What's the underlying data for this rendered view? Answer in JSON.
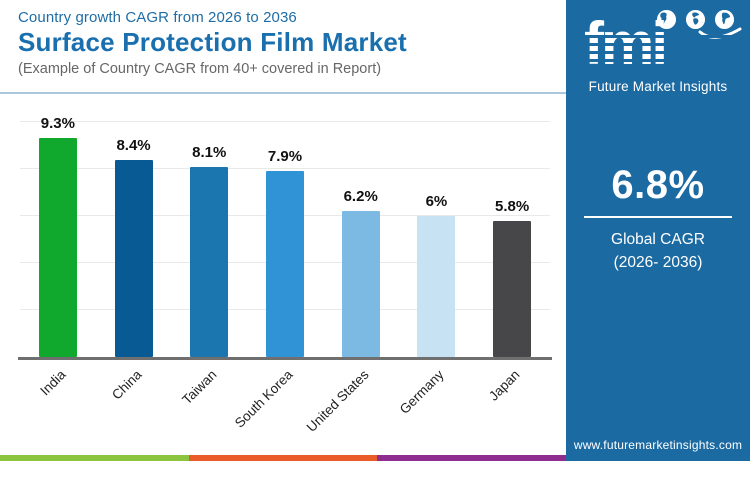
{
  "header": {
    "kicker": "Country growth CAGR from 2026 to 2036",
    "title": "Surface Protection Film Market",
    "subtitle": "(Example of Country CAGR from 40+ covered in Report)"
  },
  "chart_data": {
    "type": "bar",
    "title": "Country growth CAGR from 2026 to 2036",
    "categories": [
      "India",
      "China",
      "Taiwan",
      "South Korea",
      "United States",
      "Germany",
      "Japan"
    ],
    "values": [
      9.3,
      8.4,
      8.1,
      7.9,
      6.2,
      6.0,
      5.8
    ],
    "value_labels": [
      "9.3%",
      "8.4%",
      "8.1%",
      "7.9%",
      "6.2%",
      "6%",
      "5.8%"
    ],
    "bar_colors": [
      "#10a82d",
      "#075a94",
      "#1b76b0",
      "#2f93d6",
      "#7cbae3",
      "#c7e2f2",
      "#474648"
    ],
    "xlabel": "",
    "ylabel": "",
    "ylim": [
      0,
      10
    ],
    "gridline_step": 2,
    "grid": true,
    "legend": false
  },
  "sidebar": {
    "logo_text": "fmi",
    "logo_subtext": "Future Market Insights",
    "global_cagr_value": "6.8%",
    "global_cagr_label_line1": "Global CAGR",
    "global_cagr_label_line2": "(2026- 2036)",
    "website": "www.futuremarketinsights.com",
    "background_color": "#1b6aa2"
  },
  "footer_strip_colors": [
    "#8bc540",
    "#e95b28",
    "#8f2d8f"
  ]
}
